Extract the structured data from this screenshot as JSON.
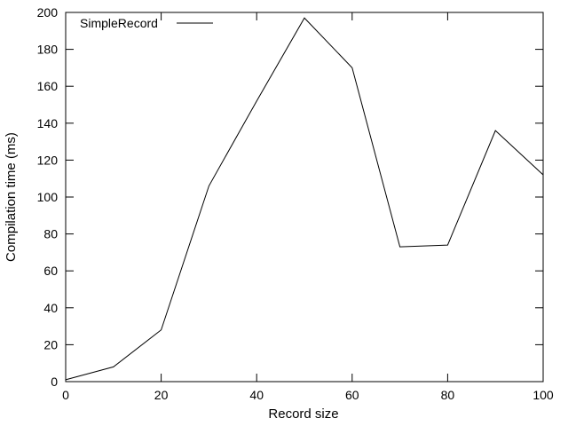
{
  "chart_data": {
    "type": "line",
    "title": "",
    "xlabel": "Record size",
    "ylabel": "Compilation time (ms)",
    "xlim": [
      0,
      100
    ],
    "ylim": [
      0,
      200
    ],
    "x_ticks": [
      0,
      20,
      40,
      60,
      80,
      100
    ],
    "y_ticks": [
      0,
      20,
      40,
      60,
      80,
      100,
      120,
      140,
      160,
      180,
      200
    ],
    "grid": false,
    "legend_position": "top-left",
    "x": [
      0,
      10,
      20,
      30,
      40,
      50,
      60,
      70,
      80,
      90,
      100
    ],
    "series": [
      {
        "name": "SimpleRecord",
        "color": "#000000",
        "values": [
          1,
          8,
          28,
          106,
          152,
          197,
          170,
          73,
          74,
          136,
          112
        ]
      }
    ]
  }
}
